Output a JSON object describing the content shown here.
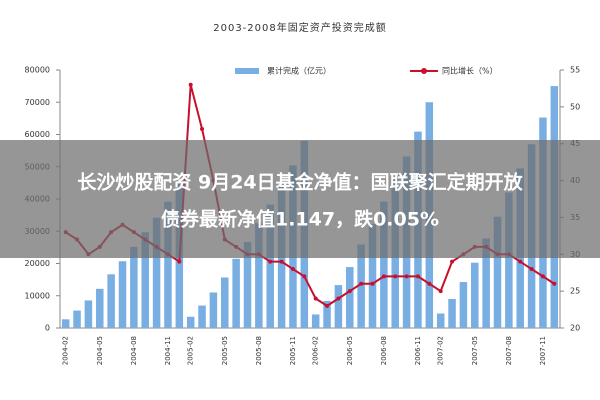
{
  "chart_data": {
    "type": "bar_line",
    "title": "2003-2008年固定资产投资完成额",
    "categories": [
      "2004-02",
      null,
      null,
      "2004-05",
      null,
      null,
      "2004-08",
      null,
      null,
      "2004-11",
      null,
      "2005-02",
      null,
      null,
      "2005-05",
      null,
      null,
      "2005-08",
      null,
      null,
      "2005-11",
      null,
      "2006-02",
      null,
      null,
      "2006-05",
      null,
      null,
      "2006-08",
      null,
      null,
      "2006-11",
      null,
      "2007-02",
      null,
      null,
      "2007-05",
      null,
      null,
      "2007-08",
      null,
      null,
      "2007-11",
      null
    ],
    "series": [
      {
        "name": "累计完成（亿元）",
        "color": "#78aee2",
        "type": "bar",
        "values": [
          2700,
          5400,
          8550,
          12150,
          16650,
          20700,
          25200,
          29700,
          34200,
          39150,
          45000,
          3480,
          6960,
          11020,
          15660,
          21460,
          26680,
          32480,
          38280,
          44080,
          50460,
          58000,
          4200,
          8400,
          13300,
          18900,
          25900,
          32200,
          39200,
          46200,
          53200,
          60900,
          70000,
          4500,
          9000,
          14250,
          20250,
          27750,
          34500,
          42000,
          49500,
          57000,
          65250,
          75000
        ]
      },
      {
        "name": "同比增长（%）",
        "color": "#c8102e",
        "type": "line",
        "axis": "y2",
        "values": [
          33,
          32,
          30,
          31,
          33,
          34,
          33,
          32,
          31,
          30,
          29,
          53,
          47,
          40,
          32,
          31,
          30,
          30,
          29,
          29,
          28,
          27,
          24,
          23,
          24,
          25,
          26,
          26,
          27,
          27,
          27,
          27,
          26,
          25,
          29,
          30,
          31,
          31,
          30,
          30,
          29,
          28,
          27,
          26
        ]
      }
    ],
    "ylim": [
      0,
      80000
    ],
    "yticks": [
      0,
      10000,
      20000,
      30000,
      40000,
      50000,
      60000,
      70000,
      80000
    ],
    "y2lim": [
      20,
      55
    ],
    "y2ticks": [
      20,
      25,
      30,
      35,
      40,
      45,
      50,
      55
    ],
    "grid": false
  },
  "banner": {
    "lines": [
      "长沙炒股配资 9月24日基金净值：国联聚汇定期开放",
      "债券最新净值1.147，跌0.05%"
    ]
  }
}
